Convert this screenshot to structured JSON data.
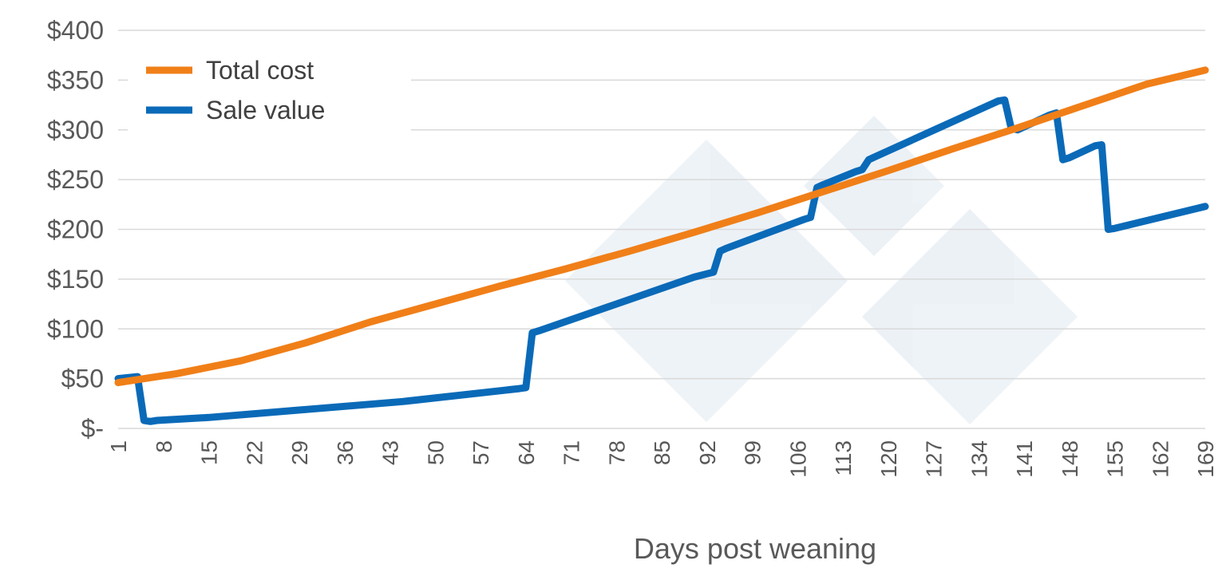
{
  "chart_data": {
    "type": "line",
    "xlabel": "Days post weaning",
    "ylabel": "",
    "x_ticks": [
      "1",
      "8",
      "15",
      "22",
      "29",
      "36",
      "43",
      "50",
      "57",
      "64",
      "71",
      "78",
      "85",
      "92",
      "99",
      "106",
      "113",
      "120",
      "127",
      "134",
      "141",
      "148",
      "155",
      "162",
      "169"
    ],
    "y_ticks": [
      "$400",
      "$350",
      "$300",
      "$250",
      "$200",
      "$150",
      "$100",
      "$50",
      "$-"
    ],
    "xlim": [
      1,
      169
    ],
    "ylim": [
      0,
      400
    ],
    "grid": true,
    "legend_position": "top-left",
    "watermark": "3tres3 logo",
    "series": [
      {
        "name": "Total cost",
        "color": "#F07F18",
        "points": [
          [
            1,
            46
          ],
          [
            10,
            55
          ],
          [
            20,
            68
          ],
          [
            30,
            86
          ],
          [
            40,
            107
          ],
          [
            50,
            125
          ],
          [
            60,
            143
          ],
          [
            70,
            160
          ],
          [
            80,
            178
          ],
          [
            90,
            197
          ],
          [
            100,
            217
          ],
          [
            110,
            238
          ],
          [
            120,
            259
          ],
          [
            130,
            281
          ],
          [
            140,
            302
          ],
          [
            150,
            324
          ],
          [
            160,
            346
          ],
          [
            169,
            360
          ]
        ]
      },
      {
        "name": "Sale value",
        "color": "#0A6AB8",
        "points": [
          [
            1,
            50
          ],
          [
            4,
            52
          ],
          [
            5,
            8
          ],
          [
            6,
            7
          ],
          [
            7,
            8
          ],
          [
            15,
            11
          ],
          [
            30,
            19
          ],
          [
            45,
            27
          ],
          [
            63,
            40
          ],
          [
            64,
            41
          ],
          [
            65,
            96
          ],
          [
            66,
            98
          ],
          [
            90,
            152
          ],
          [
            93,
            157
          ],
          [
            94,
            178
          ],
          [
            95,
            181
          ],
          [
            107,
            210
          ],
          [
            108,
            212
          ],
          [
            109,
            242
          ],
          [
            110,
            245
          ],
          [
            115,
            258
          ],
          [
            116,
            260
          ],
          [
            117,
            270
          ],
          [
            118,
            273
          ],
          [
            137,
            329
          ],
          [
            138,
            330
          ],
          [
            139,
            302
          ],
          [
            140,
            300
          ],
          [
            145,
            315
          ],
          [
            146,
            317
          ],
          [
            147,
            270
          ],
          [
            148,
            272
          ],
          [
            152,
            284
          ],
          [
            153,
            285
          ],
          [
            154,
            200
          ],
          [
            155,
            201
          ],
          [
            169,
            223
          ]
        ]
      }
    ]
  }
}
